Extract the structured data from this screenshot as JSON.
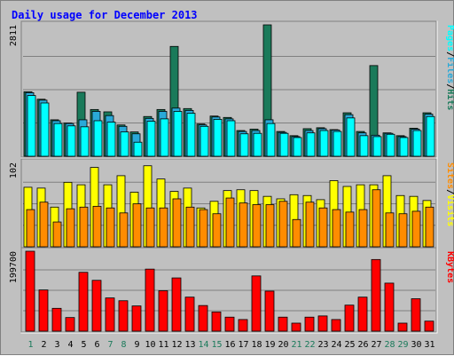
{
  "title": "Daily usage for December 2013",
  "colors": {
    "background": "#c0c0c0",
    "pages": "#00ffff",
    "files": "#2aa9d8",
    "hits": "#1a7a5a",
    "visits": "#ffff00",
    "sites": "#ff8c00",
    "kbytes": "#ff0000",
    "weekday_label": "#000000",
    "weekend_label": "#1a7a5a",
    "slash": "#000000"
  },
  "chart_data": [
    {
      "type": "bar",
      "panel": "top",
      "axis_max_label": "2811",
      "ylim": [
        0,
        2811
      ],
      "legend": [
        {
          "label": "Pages",
          "color": "#00ffff"
        },
        {
          "label": "/",
          "color": "#000000"
        },
        {
          "label": "Files",
          "color": "#2aa9d8"
        },
        {
          "label": "/",
          "color": "#000000"
        },
        {
          "label": "Hits",
          "color": "#1a7a5a"
        }
      ],
      "categories": [
        "1",
        "2",
        "3",
        "4",
        "5",
        "6",
        "7",
        "8",
        "9",
        "10",
        "11",
        "12",
        "13",
        "14",
        "15",
        "16",
        "17",
        "18",
        "19",
        "20",
        "21",
        "22",
        "23",
        "24",
        "25",
        "26",
        "27",
        "28",
        "29",
        "30",
        "31"
      ],
      "series": [
        {
          "name": "Hits",
          "values": [
            1380,
            1220,
            780,
            710,
            1370,
            1000,
            950,
            670,
            520,
            850,
            1000,
            2350,
            1020,
            690,
            860,
            830,
            550,
            580,
            2811,
            530,
            440,
            590,
            610,
            570,
            930,
            530,
            1940,
            500,
            440,
            600,
            930
          ]
        },
        {
          "name": "Files",
          "values": [
            1360,
            1200,
            760,
            700,
            780,
            960,
            870,
            640,
            480,
            810,
            960,
            1030,
            980,
            670,
            840,
            800,
            530,
            550,
            780,
            510,
            420,
            550,
            590,
            560,
            890,
            500,
            450,
            490,
            420,
            580,
            900
          ]
        },
        {
          "name": "Pages",
          "values": [
            1300,
            1140,
            700,
            650,
            630,
            760,
            730,
            520,
            300,
            750,
            800,
            960,
            920,
            640,
            790,
            760,
            480,
            490,
            700,
            490,
            400,
            500,
            550,
            530,
            820,
            440,
            420,
            470,
            400,
            550,
            850
          ]
        }
      ]
    },
    {
      "type": "bar",
      "panel": "middle",
      "axis_max_label": "102",
      "ylim": [
        0,
        102
      ],
      "legend": [
        {
          "label": "Sites",
          "color": "#ff8c00"
        },
        {
          "label": "/",
          "color": "#000000"
        },
        {
          "label": "Visits",
          "color": "#ffff00"
        }
      ],
      "categories": [
        "1",
        "2",
        "3",
        "4",
        "5",
        "6",
        "7",
        "8",
        "9",
        "10",
        "11",
        "12",
        "13",
        "14",
        "15",
        "16",
        "17",
        "18",
        "19",
        "20",
        "21",
        "22",
        "23",
        "24",
        "25",
        "26",
        "27",
        "28",
        "29",
        "30",
        "31"
      ],
      "series": [
        {
          "name": "Visits",
          "values": [
            72,
            71,
            48,
            78,
            75,
            96,
            75,
            86,
            66,
            98,
            82,
            67,
            71,
            47,
            55,
            68,
            69,
            68,
            61,
            58,
            63,
            62,
            57,
            80,
            73,
            75,
            75,
            86,
            62,
            61,
            56
          ]
        },
        {
          "name": "Sites",
          "values": [
            45,
            54,
            30,
            46,
            48,
            49,
            47,
            41,
            52,
            47,
            47,
            58,
            48,
            45,
            40,
            59,
            53,
            51,
            51,
            55,
            33,
            54,
            47,
            45,
            42,
            45,
            69,
            41,
            40,
            43,
            48
          ]
        }
      ]
    },
    {
      "type": "bar",
      "panel": "bottom",
      "axis_max_label": "199700",
      "ylim": [
        0,
        199700
      ],
      "legend": [
        {
          "label": "KBytes",
          "color": "#ff0000"
        }
      ],
      "categories": [
        "1",
        "2",
        "3",
        "4",
        "5",
        "6",
        "7",
        "8",
        "9",
        "10",
        "11",
        "12",
        "13",
        "14",
        "15",
        "16",
        "17",
        "18",
        "19",
        "20",
        "21",
        "22",
        "23",
        "24",
        "25",
        "26",
        "27",
        "28",
        "29",
        "30",
        "31"
      ],
      "series": [
        {
          "name": "KBytes",
          "values": [
            199700,
            103000,
            57000,
            34000,
            147000,
            127000,
            83000,
            76000,
            63000,
            155000,
            101000,
            133000,
            85000,
            64000,
            48000,
            35000,
            29000,
            138000,
            100000,
            35000,
            20000,
            35000,
            38000,
            29000,
            65000,
            85000,
            179000,
            120000,
            20000,
            81000,
            25000
          ]
        }
      ]
    }
  ],
  "day_labels": [
    {
      "text": "1",
      "weekend": true
    },
    {
      "text": "2",
      "weekend": false
    },
    {
      "text": "3",
      "weekend": false
    },
    {
      "text": "4",
      "weekend": false
    },
    {
      "text": "5",
      "weekend": false
    },
    {
      "text": "6",
      "weekend": false
    },
    {
      "text": "7",
      "weekend": true
    },
    {
      "text": "8",
      "weekend": true
    },
    {
      "text": "9",
      "weekend": false
    },
    {
      "text": "10",
      "weekend": false
    },
    {
      "text": "11",
      "weekend": false
    },
    {
      "text": "12",
      "weekend": false
    },
    {
      "text": "13",
      "weekend": false
    },
    {
      "text": "14",
      "weekend": true
    },
    {
      "text": "15",
      "weekend": true
    },
    {
      "text": "16",
      "weekend": false
    },
    {
      "text": "17",
      "weekend": false
    },
    {
      "text": "18",
      "weekend": false
    },
    {
      "text": "19",
      "weekend": false
    },
    {
      "text": "20",
      "weekend": false
    },
    {
      "text": "21",
      "weekend": true
    },
    {
      "text": "22",
      "weekend": true
    },
    {
      "text": "23",
      "weekend": false
    },
    {
      "text": "24",
      "weekend": false
    },
    {
      "text": "25",
      "weekend": false
    },
    {
      "text": "26",
      "weekend": false
    },
    {
      "text": "27",
      "weekend": false
    },
    {
      "text": "28",
      "weekend": true
    },
    {
      "text": "29",
      "weekend": true
    },
    {
      "text": "30",
      "weekend": false
    },
    {
      "text": "31",
      "weekend": false
    }
  ]
}
